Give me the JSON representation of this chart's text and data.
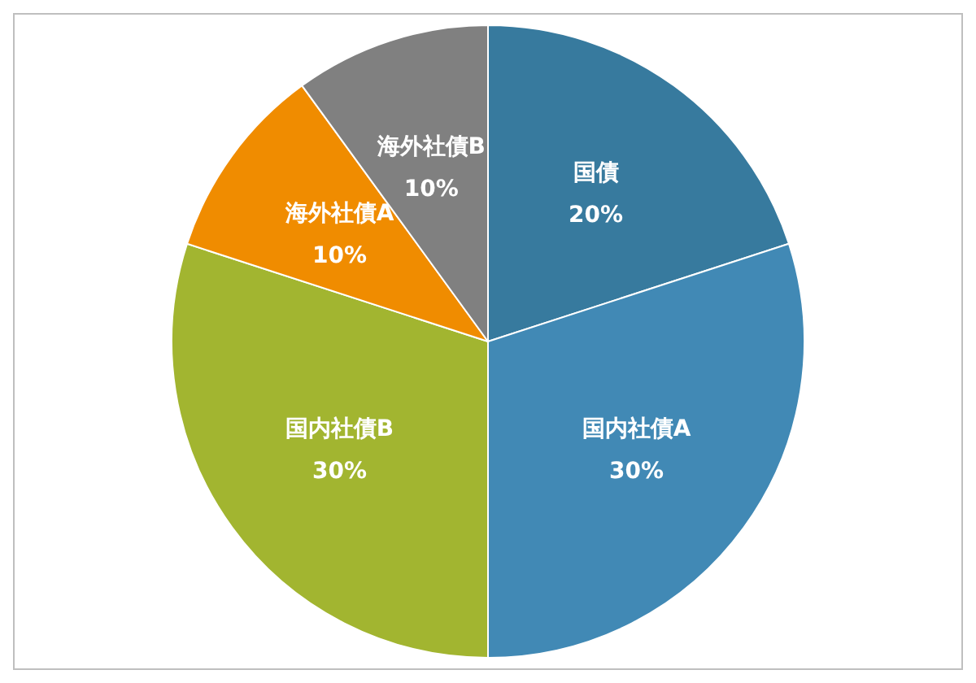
{
  "chart_data": {
    "type": "pie",
    "categories": [
      "国債",
      "国内社債A",
      "国内社債B",
      "海外社債A",
      "海外社債B"
    ],
    "values": [
      20,
      30,
      30,
      10,
      10
    ],
    "colors": [
      "#377a9e",
      "#4189b5",
      "#a2b530",
      "#f08c00",
      "#808080"
    ],
    "value_labels": [
      "20%",
      "30%",
      "30%",
      "10%",
      "10%"
    ],
    "legend": false
  }
}
